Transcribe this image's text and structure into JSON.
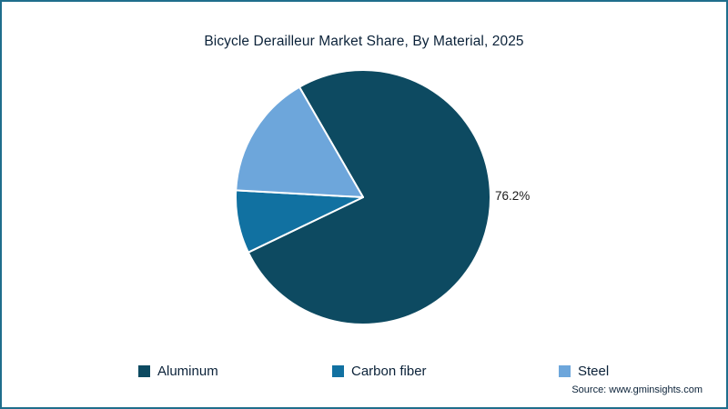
{
  "frame": {
    "border_color": "#1F6E8C",
    "background": "#FFFFFF"
  },
  "chart_data": {
    "type": "pie",
    "title": "Bicycle Derailleur Market Share, By Material, 2025",
    "categories": [
      "Aluminum",
      "Carbon fiber",
      "Steel"
    ],
    "values": [
      76.2,
      8.0,
      15.8
    ],
    "colors": [
      "#0D4A61",
      "#1171A1",
      "#6DA6DB"
    ],
    "data_labels": [
      {
        "text": "76.2%",
        "category": "Aluminum",
        "position": "right-of-chart"
      }
    ],
    "legend_position": "bottom",
    "start_angle": 330,
    "direction": "clockwise",
    "slice_border_color": "#FFFFFF"
  },
  "source": {
    "text": "Source: www.gminsights.com"
  }
}
